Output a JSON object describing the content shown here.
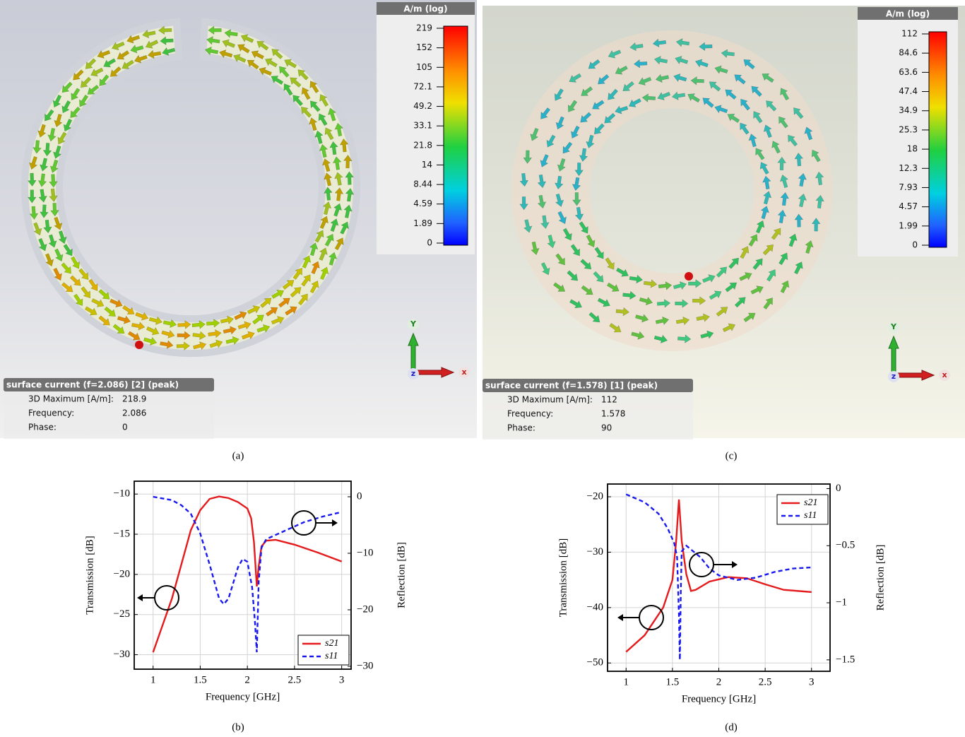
{
  "panels": {
    "a": {
      "colorbar": {
        "title": "A/m (log)",
        "ticks": [
          219,
          152,
          105,
          72.1,
          49.2,
          33.1,
          21.8,
          14,
          8.44,
          4.59,
          1.89,
          0
        ]
      },
      "info": {
        "title": "surface current (f=2.086) [2] (peak)",
        "rows": [
          [
            "3D Maximum [A/m]:",
            "218.9"
          ],
          [
            "Frequency:",
            "2.086"
          ],
          [
            "Phase:",
            "0"
          ]
        ]
      },
      "axes": [
        "Y",
        "z",
        "x"
      ],
      "caption": "(a)"
    },
    "c": {
      "colorbar": {
        "title": "A/m (log)",
        "ticks": [
          112,
          84.6,
          63.6,
          47.4,
          34.9,
          25.3,
          18,
          12.3,
          7.93,
          4.57,
          1.99,
          0
        ]
      },
      "info": {
        "title": "surface current (f=1.578) [1] (peak)",
        "rows": [
          [
            "3D Maximum [A/m]:",
            "112"
          ],
          [
            "Frequency:",
            "1.578"
          ],
          [
            "Phase:",
            "90"
          ]
        ]
      },
      "axes": [
        "Y",
        "z",
        "x"
      ],
      "caption": "(c)"
    }
  },
  "chart_data": [
    {
      "type": "line",
      "caption": "(b)",
      "xlabel": "Frequency [GHz]",
      "ylabel": "Transmission [dB]",
      "y2label": "Reflection [dB]",
      "xlim": [
        0.8,
        3.1
      ],
      "ylim": [
        -31.8,
        -8.4
      ],
      "y2lim": [
        -30.5,
        2.75
      ],
      "xticks": [
        1,
        1.5,
        2,
        2.5,
        3
      ],
      "yticks": [
        {
          "value": -30,
          "label": "−30"
        },
        {
          "value": -25,
          "label": "−25"
        },
        {
          "value": -20,
          "label": "−20"
        },
        {
          "value": -15,
          "label": "−15"
        },
        {
          "value": -10,
          "label": "−10"
        }
      ],
      "y2ticks": [
        {
          "value": -30,
          "label": "−30"
        },
        {
          "value": -20,
          "label": "−20"
        },
        {
          "value": -10,
          "label": "−10"
        },
        0
      ],
      "grid": true,
      "legend": "lower right",
      "series": [
        {
          "name": "s21",
          "color": "#e41a1c",
          "style": "solid",
          "x": [
            1,
            1.2,
            1.4,
            1.5,
            1.6,
            1.7,
            1.8,
            1.9,
            2.0,
            2.04,
            2.07,
            2.1,
            2.12,
            2.15,
            2.2,
            2.3,
            2.5,
            2.75,
            3
          ],
          "values": [
            -29.7,
            -23,
            -14.5,
            -12,
            -10.6,
            -10.3,
            -10.5,
            -11,
            -11.8,
            -13,
            -16,
            -21.5,
            -19,
            -16.5,
            -15.8,
            -15.7,
            -16.3,
            -17.3,
            -18.4
          ]
        },
        {
          "name": "s11",
          "color": "#1a1aee",
          "style": "dashed",
          "axis": "y2",
          "x": [
            1,
            1.2,
            1.3,
            1.4,
            1.5,
            1.6,
            1.7,
            1.75,
            1.8,
            1.9,
            1.95,
            2.0,
            2.05,
            2.08,
            2.1,
            2.12,
            2.15,
            2.2,
            2.4,
            2.6,
            2.8,
            3.0
          ],
          "values": [
            0,
            -0.6,
            -1.5,
            -3,
            -6.5,
            -12,
            -18,
            -19,
            -18,
            -12.5,
            -11,
            -11.5,
            -16,
            -22,
            -27.5,
            -15,
            -9,
            -7.5,
            -6,
            -4.5,
            -3.5,
            -2.7
          ]
        }
      ]
    },
    {
      "type": "line",
      "caption": "(d)",
      "xlabel": "Frequency [GHz]",
      "ylabel": "Transmission [dB]",
      "y2label": "Reflection [dB]",
      "xlim": [
        0.8,
        3.2
      ],
      "ylim": [
        -51.5,
        -17.7
      ],
      "y2lim": [
        -1.6,
        0.04
      ],
      "xticks": [
        1,
        1.5,
        2,
        2.5,
        3
      ],
      "yticks": [
        {
          "value": -50,
          "label": "−50"
        },
        {
          "value": -40,
          "label": "−40"
        },
        {
          "value": -30,
          "label": "−30"
        },
        {
          "value": -20,
          "label": "−20"
        }
      ],
      "y2ticks": [
        {
          "value": -1.5,
          "label": "−1.5"
        },
        {
          "value": -1,
          "label": "−1"
        },
        {
          "value": -0.5,
          "label": "−0.5"
        },
        0
      ],
      "grid": true,
      "legend": "upper right",
      "series": [
        {
          "name": "s21",
          "color": "#e41a1c",
          "style": "solid",
          "x": [
            1,
            1.2,
            1.4,
            1.5,
            1.54,
            1.57,
            1.6,
            1.65,
            1.7,
            1.75,
            1.9,
            2.1,
            2.3,
            2.5,
            2.7,
            3
          ],
          "values": [
            -48,
            -45,
            -40,
            -35,
            -28,
            -20.5,
            -28,
            -34,
            -37,
            -36.8,
            -35.3,
            -34.5,
            -34.7,
            -35.8,
            -36.8,
            -37.2
          ]
        },
        {
          "name": "s11",
          "color": "#1a1aee",
          "style": "dashed",
          "axis": "y2",
          "x": [
            1,
            1.2,
            1.35,
            1.45,
            1.52,
            1.55,
            1.57,
            1.58,
            1.59,
            1.6,
            1.65,
            1.8,
            1.9,
            2.0,
            2.2,
            2.4,
            2.6,
            2.8,
            3
          ],
          "values": [
            -0.05,
            -0.12,
            -0.22,
            -0.35,
            -0.48,
            -0.6,
            -1.1,
            -1.5,
            -0.9,
            -0.55,
            -0.5,
            -0.6,
            -0.7,
            -0.76,
            -0.8,
            -0.78,
            -0.73,
            -0.7,
            -0.69
          ]
        }
      ]
    }
  ]
}
